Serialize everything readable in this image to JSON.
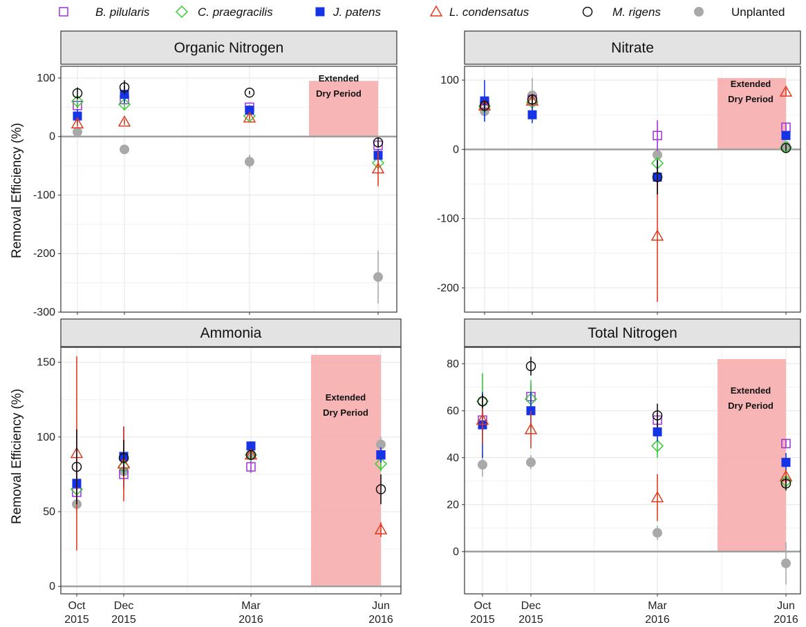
{
  "legend": [
    {
      "name": "B. pilularis",
      "italic": true,
      "shape": "square-open",
      "color": "#9b30d9"
    },
    {
      "name": "C. praegracilis",
      "italic": true,
      "shape": "diamond-open",
      "color": "#33cc33"
    },
    {
      "name": "J. patens",
      "italic": true,
      "shape": "square-filled",
      "color": "#1434e6"
    },
    {
      "name": "L. condensatus",
      "italic": true,
      "shape": "triangle-open",
      "color": "#e03a1e"
    },
    {
      "name": "M. rigens",
      "italic": true,
      "shape": "circle-open",
      "color": "#111111"
    },
    {
      "name": "Unplanted",
      "italic": false,
      "shape": "circle-filled",
      "color": "#a9a9a9"
    }
  ],
  "y_axis_label": "Removal Efficiency (%)",
  "dry_period_label": [
    "Extended",
    "Dry Period"
  ],
  "x_ticks": [
    {
      "line1": "Oct",
      "line2": "2015"
    },
    {
      "line1": "Dec",
      "line2": "2015"
    },
    {
      "line1": "Mar",
      "line2": "2016"
    },
    {
      "line1": "Jun",
      "line2": "2016"
    }
  ],
  "chart_data": [
    {
      "type": "scatter",
      "title": "Organic Nitrogen",
      "ylabel": "Removal Efficiency (%)",
      "ylim": [
        -300,
        120
      ],
      "yticks": [
        100,
        0,
        -100,
        -200,
        -300
      ],
      "dry_band_y": [
        0,
        95
      ],
      "series": [
        {
          "name": "B. pilularis",
          "values": [
            53,
            63,
            50,
            -15
          ],
          "err": [
            5,
            8,
            4,
            5
          ]
        },
        {
          "name": "C. praegracilis",
          "values": [
            60,
            55,
            35,
            -45
          ],
          "err": [
            8,
            8,
            5,
            8
          ]
        },
        {
          "name": "J. patens",
          "values": [
            35,
            72,
            45,
            -32
          ],
          "err": [
            12,
            15,
            5,
            10
          ]
        },
        {
          "name": "L. condensatus",
          "values": [
            22,
            25,
            32,
            -55
          ],
          "err": [
            5,
            5,
            4,
            30
          ]
        },
        {
          "name": "M. rigens",
          "values": [
            74,
            84,
            75,
            -10
          ],
          "err": [
            10,
            12,
            3,
            8
          ]
        },
        {
          "name": "Unplanted",
          "values": [
            8,
            -22,
            -43,
            -240
          ],
          "err": [
            5,
            5,
            12,
            45
          ]
        }
      ]
    },
    {
      "type": "scatter",
      "title": "Nitrate",
      "ylabel": "",
      "ylim": [
        -235,
        120
      ],
      "yticks": [
        100,
        0,
        -100,
        -200
      ],
      "dry_band_y": [
        0,
        103
      ],
      "series": [
        {
          "name": "B. pilularis",
          "values": [
            65,
            72,
            20,
            32
          ],
          "err": [
            8,
            8,
            22,
            5
          ]
        },
        {
          "name": "C. praegracilis",
          "values": [
            62,
            68,
            -20,
            3
          ],
          "err": [
            8,
            8,
            8,
            5
          ]
        },
        {
          "name": "J. patens",
          "values": [
            70,
            50,
            -40,
            20
          ],
          "err": [
            30,
            12,
            25,
            5
          ]
        },
        {
          "name": "L. condensatus",
          "values": [
            63,
            70,
            -125,
            83
          ],
          "err": [
            8,
            8,
            95,
            5
          ]
        },
        {
          "name": "M. rigens",
          "values": [
            63,
            72,
            -40,
            2
          ],
          "err": [
            8,
            8,
            25,
            5
          ]
        },
        {
          "name": "Unplanted",
          "values": [
            55,
            78,
            -8,
            5
          ],
          "err": [
            12,
            25,
            8,
            5
          ]
        }
      ]
    },
    {
      "type": "scatter",
      "title": "Ammonia",
      "ylabel": "Removal Efficiency (%)",
      "ylim": [
        -5,
        160
      ],
      "yticks": [
        150,
        100,
        50,
        0
      ],
      "dry_band_y": [
        0,
        155
      ],
      "series": [
        {
          "name": "B. pilularis",
          "values": [
            63,
            75,
            80,
            88
          ],
          "err": [
            5,
            10,
            4,
            5
          ]
        },
        {
          "name": "C. praegracilis",
          "values": [
            65,
            80,
            88,
            82
          ],
          "err": [
            5,
            10,
            3,
            5
          ]
        },
        {
          "name": "J. patens",
          "values": [
            69,
            87,
            94,
            88
          ],
          "err": [
            8,
            20,
            3,
            5
          ]
        },
        {
          "name": "L. condensatus",
          "values": [
            89,
            82,
            88,
            38
          ],
          "err": [
            65,
            25,
            3,
            5
          ]
        },
        {
          "name": "M. rigens",
          "values": [
            80,
            86,
            88,
            65
          ],
          "err": [
            25,
            12,
            3,
            10
          ]
        },
        {
          "name": "Unplanted",
          "values": [
            55,
            77,
            88,
            95
          ],
          "err": [
            5,
            10,
            3,
            5
          ]
        }
      ]
    },
    {
      "type": "scatter",
      "title": "Total Nitrogen",
      "ylabel": "",
      "ylim": [
        -18,
        87
      ],
      "yticks": [
        80,
        60,
        40,
        20,
        0
      ],
      "dry_band_y": [
        0,
        82
      ],
      "series": [
        {
          "name": "B. pilularis",
          "values": [
            56,
            66,
            56,
            46
          ],
          "err": [
            5,
            5,
            3,
            2
          ]
        },
        {
          "name": "C. praegracilis",
          "values": [
            64,
            65,
            45,
            30
          ],
          "err": [
            12,
            8,
            5,
            3
          ]
        },
        {
          "name": "J. patens",
          "values": [
            54,
            60,
            51,
            38
          ],
          "err": [
            14,
            8,
            4,
            4
          ]
        },
        {
          "name": "L. condensatus",
          "values": [
            56,
            52,
            23,
            32
          ],
          "err": [
            10,
            8,
            10,
            3
          ]
        },
        {
          "name": "M. rigens",
          "values": [
            64,
            79,
            58,
            29
          ],
          "err": [
            3,
            4,
            5,
            3
          ]
        },
        {
          "name": "Unplanted",
          "values": [
            37,
            38,
            8,
            -5
          ],
          "err": [
            5,
            3,
            3,
            9
          ]
        }
      ]
    }
  ]
}
